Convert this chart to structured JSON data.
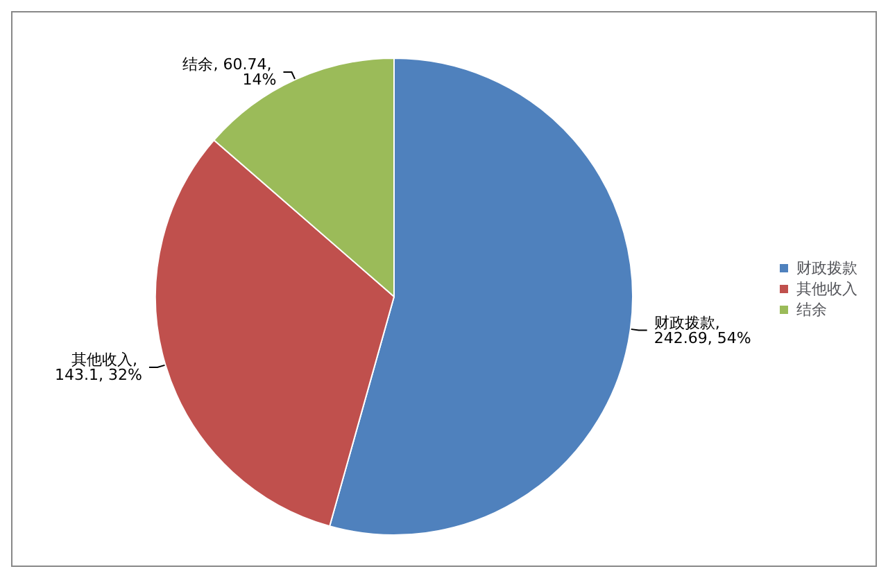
{
  "chart_data": {
    "type": "pie",
    "categories": [
      "财政拨款",
      "其他收入",
      "结余"
    ],
    "values": [
      242.69,
      143.1,
      60.74
    ],
    "colors": [
      "#4f81bd",
      "#c0504d",
      "#9bbb59"
    ],
    "value_labels": [
      "财政拨款, 242.69, 54%",
      "其他收入, 143.1, 32%",
      "结余, 60.74, 14%"
    ],
    "legend": "right"
  }
}
